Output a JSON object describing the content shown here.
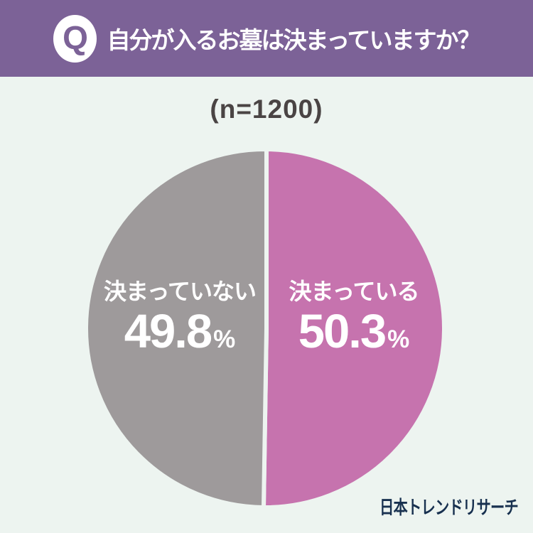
{
  "page": {
    "background": "#edf4f0"
  },
  "header": {
    "q_label": "Q",
    "title": "自分が入るお墓は決まっていますか？",
    "background": "#7c6297",
    "text_color": "#ffffff"
  },
  "survey": {
    "sample_size_label": "(n=1200)"
  },
  "chart_data": {
    "type": "pie",
    "title": "自分が入るお墓は決まっていますか？",
    "sample_label": "(n=1200)",
    "categories": [
      "決まっている",
      "決まっていない"
    ],
    "values": [
      50.3,
      49.8
    ],
    "unit": "%",
    "colors": [
      "#c673ae",
      "#9e9a9b"
    ],
    "start_angle": "top",
    "direction": "clockwise",
    "label_color": "#ffffff",
    "gap_color": "#edf4f0"
  },
  "slices": [
    {
      "label": "決まっている",
      "value": "50.3",
      "unit": "%"
    },
    {
      "label": "決まっていない",
      "value": "49.8",
      "unit": "%"
    }
  ],
  "source": {
    "credit": "日本トレンドリサーチ",
    "color": "#17304f"
  }
}
